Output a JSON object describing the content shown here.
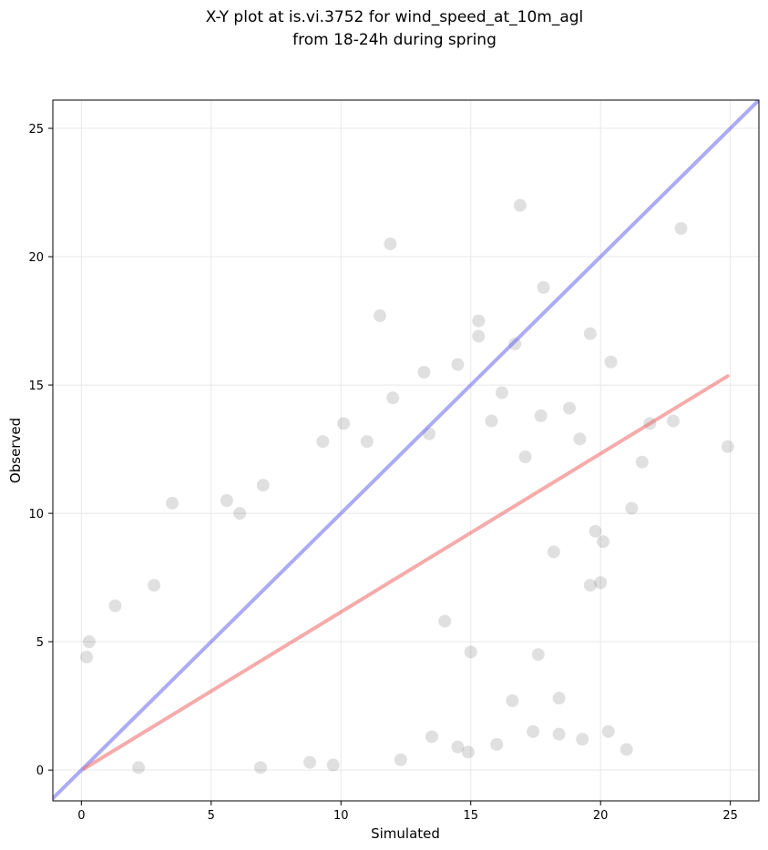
{
  "chart_data": {
    "type": "scatter",
    "title": "X-Y plot at is.vi.3752 for wind_speed_at_10m_agl",
    "subtitle": "from 18-24h during spring",
    "xlabel": "Simulated",
    "ylabel": "Observed",
    "xlim": [
      -1.1,
      26.1
    ],
    "ylim": [
      -1.2,
      26.1
    ],
    "xticks": [
      0,
      5,
      10,
      15,
      20,
      25
    ],
    "yticks": [
      0,
      5,
      10,
      15,
      20,
      25
    ],
    "grid": true,
    "legend": false,
    "colors": {
      "points": "#000000",
      "identity_line": "#6666ee",
      "fit_line": "#ee6666",
      "grid": "#e8e8e8"
    },
    "lines": [
      {
        "role": "identity",
        "x": [
          -1.1,
          26.1
        ],
        "y": [
          -1.1,
          26.1
        ]
      },
      {
        "role": "fit",
        "x": [
          0.1,
          24.9
        ],
        "y": [
          0.05,
          15.35
        ]
      }
    ],
    "points": [
      [
        16.9,
        22.0
      ],
      [
        23.1,
        21.1
      ],
      [
        11.9,
        20.5
      ],
      [
        17.8,
        18.8
      ],
      [
        11.5,
        17.7
      ],
      [
        15.3,
        17.5
      ],
      [
        15.3,
        16.9
      ],
      [
        16.7,
        16.6
      ],
      [
        19.6,
        17.0
      ],
      [
        24.9,
        12.6
      ],
      [
        22.8,
        13.6
      ],
      [
        21.2,
        10.2
      ],
      [
        20.0,
        7.3
      ],
      [
        19.6,
        7.2
      ],
      [
        21.0,
        0.8
      ],
      [
        20.3,
        1.5
      ],
      [
        19.3,
        1.2
      ],
      [
        18.4,
        1.4
      ],
      [
        17.4,
        1.5
      ],
      [
        16.6,
        2.7
      ],
      [
        18.4,
        2.8
      ],
      [
        17.6,
        4.5
      ],
      [
        12.0,
        14.5
      ],
      [
        13.2,
        15.5
      ],
      [
        15.8,
        13.6
      ],
      [
        3.5,
        10.4
      ],
      [
        5.6,
        10.5
      ],
      [
        6.1,
        10.0
      ],
      [
        7.0,
        11.1
      ],
      [
        9.3,
        12.8
      ],
      [
        10.1,
        13.5
      ],
      [
        11.0,
        12.8
      ],
      [
        1.3,
        6.4
      ],
      [
        2.8,
        7.2
      ],
      [
        0.3,
        5.0
      ],
      [
        0.2,
        4.4
      ],
      [
        14.0,
        5.8
      ],
      [
        15.0,
        4.6
      ],
      [
        14.9,
        0.7
      ],
      [
        16.0,
        1.0
      ],
      [
        14.5,
        0.9
      ],
      [
        13.5,
        1.3
      ],
      [
        12.3,
        0.4
      ],
      [
        9.7,
        0.2
      ],
      [
        8.8,
        0.3
      ],
      [
        2.2,
        0.1
      ],
      [
        6.9,
        0.1
      ],
      [
        19.8,
        9.3
      ],
      [
        20.1,
        8.9
      ],
      [
        18.2,
        8.5
      ],
      [
        17.1,
        12.2
      ],
      [
        18.8,
        14.1
      ],
      [
        20.4,
        15.9
      ],
      [
        21.6,
        12.0
      ],
      [
        21.9,
        13.5
      ],
      [
        14.5,
        15.8
      ],
      [
        13.4,
        13.1
      ],
      [
        16.2,
        14.7
      ],
      [
        17.7,
        13.8
      ],
      [
        19.2,
        12.9
      ]
    ]
  }
}
